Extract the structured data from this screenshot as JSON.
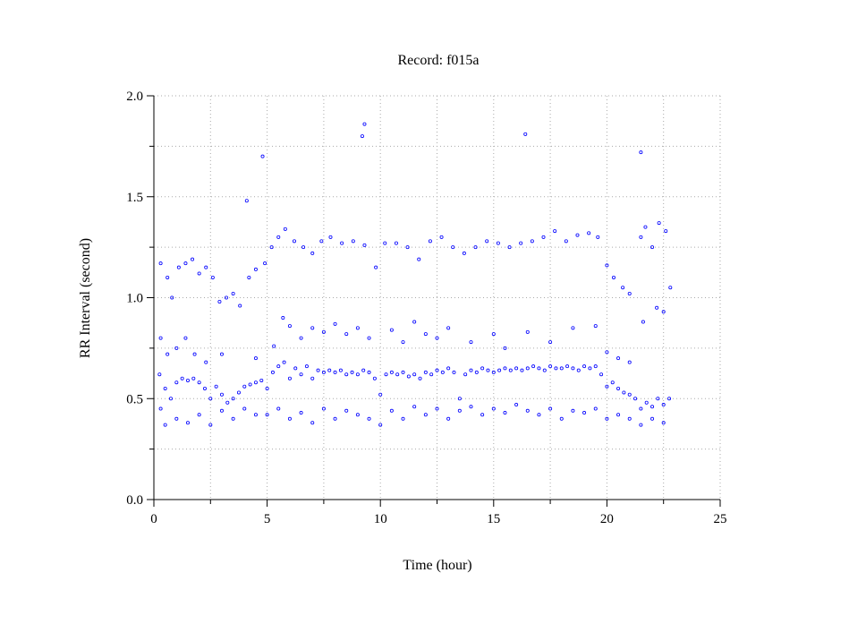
{
  "chart_data": {
    "type": "scatter",
    "title": "Record:  f015a",
    "xlabel": "Time (hour)",
    "ylabel": "RR Interval (second)",
    "color": "#0000ff",
    "grid": true,
    "xlim": [
      0,
      25
    ],
    "ylim": [
      0,
      2
    ],
    "xticks": [
      0,
      5,
      10,
      15,
      20,
      25
    ],
    "xminorticks": [
      2.5,
      7.5,
      12.5,
      17.5,
      22.5
    ],
    "yticks": [
      {
        "value": 0,
        "label": "0.0"
      },
      0.5,
      {
        "value": 1,
        "label": "1.0"
      },
      1.5,
      {
        "value": 2,
        "label": "2.0"
      }
    ],
    "yminorticks": [
      0.25,
      0.75,
      1.25,
      1.75
    ],
    "x": [
      0.25,
      0.5,
      0.75,
      1.0,
      1.25,
      1.5,
      1.75,
      2.0,
      2.25,
      2.5,
      2.75,
      3.0,
      3.25,
      3.5,
      3.75,
      4.0,
      4.25,
      4.5,
      4.75,
      5.0,
      5.25,
      5.5,
      5.75,
      6.0,
      6.25,
      6.5,
      6.75,
      7.0,
      7.25,
      7.5,
      7.75,
      8.0,
      8.25,
      8.5,
      8.75,
      9.0,
      9.25,
      9.5,
      9.75,
      10.0,
      10.25,
      10.5,
      10.75,
      11.0,
      11.25,
      11.5,
      11.75,
      12.0,
      12.25,
      12.5,
      12.75,
      13.0,
      13.25,
      13.5,
      13.75,
      14.0,
      14.25,
      14.5,
      14.75,
      15.0,
      15.25,
      15.5,
      15.75,
      16.0,
      16.25,
      16.5,
      16.75,
      17.0,
      17.25,
      17.5,
      17.75,
      18.0,
      18.25,
      18.5,
      18.75,
      19.0,
      19.25,
      19.5,
      19.75,
      20.0,
      20.25,
      20.5,
      20.75,
      21.0,
      21.25,
      21.5,
      21.75,
      22.0,
      22.25,
      22.5,
      22.75,
      0.3,
      0.6,
      0.8,
      1.1,
      1.4,
      1.7,
      2.0,
      2.3,
      2.6,
      2.9,
      3.2,
      3.5,
      3.8,
      4.2,
      4.5,
      4.9,
      5.2,
      5.5,
      5.8,
      6.2,
      6.6,
      7.0,
      7.4,
      7.8,
      8.3,
      8.8,
      9.3,
      9.8,
      10.2,
      10.7,
      11.2,
      11.7,
      12.2,
      12.7,
      13.2,
      13.7,
      14.2,
      14.7,
      15.2,
      15.7,
      16.2,
      16.7,
      17.2,
      17.7,
      18.2,
      18.7,
      19.2,
      19.6,
      20.0,
      20.3,
      20.7,
      21.0,
      21.5,
      21.7,
      22.0,
      22.6,
      22.8,
      21.6,
      22.2,
      22.5,
      0.3,
      0.6,
      1.0,
      1.4,
      1.8,
      2.3,
      3.0,
      4.5,
      5.3,
      5.7,
      6.0,
      6.5,
      7.0,
      7.5,
      8.0,
      8.5,
      9.0,
      9.5,
      10.5,
      11.0,
      11.5,
      12.0,
      12.5,
      13.0,
      14.0,
      15.0,
      15.5,
      16.5,
      17.5,
      18.5,
      19.5,
      20.0,
      20.5,
      21.0,
      0.3,
      0.5,
      1.0,
      1.5,
      2.0,
      2.5,
      3.0,
      3.5,
      4.0,
      4.5,
      5.0,
      5.5,
      6.0,
      6.5,
      7.0,
      7.5,
      8.0,
      8.5,
      9.0,
      9.5,
      10.0,
      10.5,
      11.0,
      11.5,
      12.0,
      12.5,
      13.0,
      13.5,
      14.0,
      14.5,
      15.0,
      15.5,
      16.0,
      16.5,
      17.0,
      17.5,
      18.0,
      18.5,
      19.0,
      19.5,
      20.0,
      20.5,
      21.0,
      21.5,
      22.0,
      22.5,
      4.1,
      4.8,
      9.2,
      9.3,
      16.4,
      21.5,
      22.3
    ],
    "values": [
      0.62,
      0.55,
      0.5,
      0.58,
      0.6,
      0.59,
      0.6,
      0.58,
      0.55,
      0.5,
      0.56,
      0.52,
      0.48,
      0.5,
      0.53,
      0.56,
      0.57,
      0.58,
      0.59,
      0.55,
      0.63,
      0.66,
      0.68,
      0.6,
      0.65,
      0.62,
      0.66,
      0.6,
      0.64,
      0.63,
      0.64,
      0.63,
      0.64,
      0.62,
      0.63,
      0.62,
      0.64,
      0.63,
      0.6,
      0.52,
      0.62,
      0.63,
      0.62,
      0.63,
      0.61,
      0.62,
      0.6,
      0.63,
      0.62,
      0.64,
      0.63,
      0.65,
      0.63,
      0.5,
      0.62,
      0.64,
      0.63,
      0.65,
      0.64,
      0.63,
      0.64,
      0.65,
      0.64,
      0.65,
      0.64,
      0.65,
      0.66,
      0.65,
      0.64,
      0.66,
      0.65,
      0.65,
      0.66,
      0.65,
      0.64,
      0.66,
      0.65,
      0.66,
      0.62,
      0.56,
      0.58,
      0.55,
      0.53,
      0.52,
      0.5,
      0.45,
      0.48,
      0.46,
      0.5,
      0.47,
      0.5,
      1.17,
      1.1,
      1.0,
      1.15,
      1.17,
      1.19,
      1.12,
      1.15,
      1.1,
      0.98,
      1.0,
      1.02,
      0.96,
      1.1,
      1.14,
      1.17,
      1.25,
      1.3,
      1.34,
      1.28,
      1.25,
      1.22,
      1.28,
      1.3,
      1.27,
      1.28,
      1.26,
      1.15,
      1.27,
      1.27,
      1.25,
      1.19,
      1.28,
      1.3,
      1.25,
      1.22,
      1.25,
      1.28,
      1.27,
      1.25,
      1.27,
      1.28,
      1.3,
      1.33,
      1.28,
      1.31,
      1.32,
      1.3,
      1.16,
      1.1,
      1.05,
      1.02,
      1.3,
      1.35,
      1.25,
      1.33,
      1.05,
      0.88,
      0.95,
      0.93,
      0.8,
      0.72,
      0.75,
      0.8,
      0.72,
      0.68,
      0.72,
      0.7,
      0.76,
      0.9,
      0.86,
      0.8,
      0.85,
      0.83,
      0.87,
      0.82,
      0.85,
      0.8,
      0.84,
      0.78,
      0.88,
      0.82,
      0.8,
      0.85,
      0.78,
      0.82,
      0.75,
      0.83,
      0.78,
      0.85,
      0.86,
      0.73,
      0.7,
      0.68,
      0.45,
      0.37,
      0.4,
      0.38,
      0.42,
      0.37,
      0.44,
      0.4,
      0.45,
      0.42,
      0.42,
      0.45,
      0.4,
      0.43,
      0.38,
      0.45,
      0.4,
      0.44,
      0.42,
      0.4,
      0.37,
      0.44,
      0.4,
      0.46,
      0.42,
      0.45,
      0.4,
      0.44,
      0.46,
      0.42,
      0.45,
      0.43,
      0.47,
      0.44,
      0.42,
      0.45,
      0.4,
      0.44,
      0.43,
      0.45,
      0.4,
      0.42,
      0.4,
      0.37,
      0.4,
      0.38,
      1.48,
      1.7,
      1.8,
      1.86,
      1.81,
      1.72,
      1.37
    ]
  }
}
